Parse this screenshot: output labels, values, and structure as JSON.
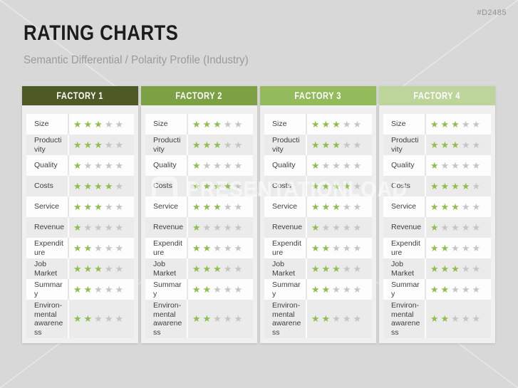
{
  "slide": {
    "code": "#D2485",
    "title": "RATING CHARTS",
    "subtitle": "Semantic Differential / Polarity Profile (Industry)",
    "watermark_text": "PRESENTATIONLOAD"
  },
  "icons": {
    "star": "★"
  },
  "colors": {
    "background": "#d8d8d8",
    "panel": "#f0f0f0",
    "row_light": "#fdfdfd",
    "row_dark": "#ebebeb",
    "star_active": "#8fbe4d",
    "star_inactive": "#c5c5c5",
    "title_text": "#1c1c1c",
    "subtitle_text": "#9a9a9a",
    "code_text": "#8f8f8f",
    "label_text": "#3f3f3f"
  },
  "rating_scale": {
    "max": 5
  },
  "criteria": [
    "Size",
    "Productivity",
    "Quality",
    "Costs",
    "Service",
    "Revenue",
    "Expenditure",
    "Job Market",
    "Summary",
    "Environ-mental awareness"
  ],
  "factories": [
    {
      "name": "FACTORY 1",
      "header_color": "#4d5a26",
      "ratings": [
        3,
        3,
        1,
        4,
        3,
        1,
        2,
        3,
        2,
        2
      ]
    },
    {
      "name": "FACTORY 2",
      "header_color": "#7ba144",
      "ratings": [
        3,
        3,
        1,
        4,
        3,
        1,
        2,
        3,
        2,
        2
      ]
    },
    {
      "name": "FACTORY 3",
      "header_color": "#93bb5b",
      "ratings": [
        3,
        3,
        1,
        4,
        3,
        1,
        2,
        3,
        2,
        2
      ]
    },
    {
      "name": "FACTORY 4",
      "header_color": "#bdd49b",
      "ratings": [
        3,
        3,
        1,
        4,
        3,
        1,
        2,
        3,
        2,
        2
      ]
    }
  ]
}
